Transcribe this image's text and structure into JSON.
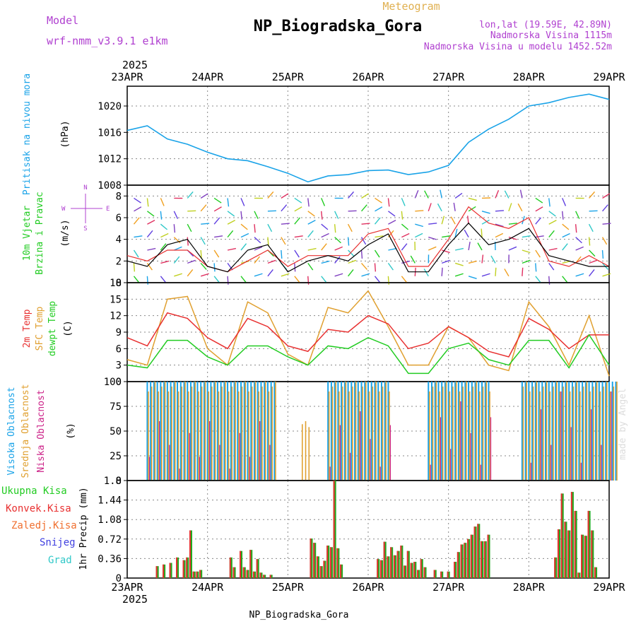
{
  "header": {
    "title": "NP_Biogradska_Gora",
    "subtitle": "Meteogram",
    "model_label": "Model",
    "model_name": "wrf-nmm_v3.9.1 e1km",
    "lonlat": "lon,lat (19.59E, 42.89N)",
    "elevation": "Nadmorska Visina 1115m",
    "model_elevation": "Nadmorska Visina u modelu 1452.52m",
    "footer": "NP_Biogradska_Gora",
    "credit": "made by Angel",
    "year": "2025"
  },
  "colors": {
    "pressure": "#1aa3e8",
    "wind_speed": "#000000",
    "gust": "#e83030",
    "temp2m": "#e83030",
    "sfc_temp": "#e0a030",
    "dewpoint": "#22cc22",
    "cloud_high": "#1aa3e8",
    "cloud_mid": "#e0a030",
    "cloud_low": "#cc2288",
    "precip_total": "#22aa22",
    "precip_conv": "#e83030",
    "title_purple": "#b040d0"
  },
  "chart_data": [
    {
      "type": "line",
      "ylabel_left": "Pritisak na nivou mora",
      "unit": "(hPa)",
      "yticks": [
        1008,
        1012,
        1016,
        1020
      ],
      "ylim": [
        1008,
        1023
      ],
      "grid": true,
      "x_labels": [
        "23APR",
        "24APR",
        "25APR",
        "26APR",
        "27APR",
        "28APR",
        "29APR"
      ],
      "x": [
        0,
        6,
        12,
        18,
        24,
        30,
        36,
        42,
        48,
        54,
        60,
        66,
        72,
        78,
        84,
        90,
        96,
        102,
        108,
        114,
        120,
        126,
        132,
        138,
        144
      ],
      "series": [
        {
          "values": [
            1016.3,
            1017.0,
            1015.0,
            1014.2,
            1013.0,
            1012.0,
            1011.7,
            1010.8,
            1009.8,
            1008.5,
            1009.4,
            1009.6,
            1010.2,
            1010.3,
            1009.6,
            1010.0,
            1011.0,
            1014.5,
            1016.5,
            1018.0,
            1020.0,
            1020.5,
            1021.3,
            1021.8,
            1021.0
          ]
        }
      ]
    },
    {
      "type": "line",
      "ylabel_left": [
        "10m Vjetar",
        "Brzina i Pravac"
      ],
      "unit": "(m/s)",
      "compass": [
        "N",
        "W",
        "E",
        "S"
      ],
      "yticks": [
        0,
        2,
        4,
        6,
        8
      ],
      "ylim": [
        0,
        9
      ],
      "grid": true,
      "x": [
        0,
        6,
        12,
        18,
        24,
        30,
        36,
        42,
        48,
        54,
        60,
        66,
        72,
        78,
        84,
        90,
        96,
        102,
        108,
        114,
        120,
        126,
        132,
        138,
        144
      ],
      "series": [
        {
          "values": [
            2.0,
            1.5,
            3.5,
            4.0,
            1.5,
            1.0,
            3.0,
            3.5,
            1.0,
            2.0,
            2.5,
            2.0,
            3.5,
            4.5,
            1.0,
            1.0,
            3.5,
            5.5,
            3.5,
            4.0,
            5.0,
            2.5,
            2.0,
            1.5,
            1.5
          ]
        },
        {
          "values": [
            2.5,
            2.0,
            3.0,
            3.0,
            1.5,
            1.0,
            2.0,
            3.0,
            1.5,
            2.5,
            2.5,
            2.5,
            4.5,
            5.0,
            1.5,
            1.5,
            4.0,
            7.0,
            5.5,
            5.0,
            6.0,
            2.0,
            1.5,
            2.5,
            1.5
          ]
        }
      ]
    },
    {
      "type": "line",
      "ylabel_left": [
        "2m Temp",
        "SFC Temp",
        "dewpt Temp"
      ],
      "unit": "(C)",
      "yticks": [
        0,
        3,
        6,
        9,
        12,
        15,
        18
      ],
      "ylim": [
        0,
        18
      ],
      "grid": true,
      "x": [
        0,
        6,
        12,
        18,
        24,
        30,
        36,
        42,
        48,
        54,
        60,
        66,
        72,
        78,
        84,
        90,
        96,
        102,
        108,
        114,
        120,
        126,
        132,
        138,
        144
      ],
      "series": [
        {
          "values": [
            8.0,
            6.5,
            12.5,
            11.5,
            8.0,
            6.0,
            11.5,
            10.0,
            6.5,
            5.5,
            9.5,
            9.0,
            12.0,
            10.5,
            6.0,
            7.0,
            10.0,
            8.0,
            5.5,
            4.5,
            11.5,
            9.5,
            6.0,
            8.5,
            8.5
          ]
        },
        {
          "values": [
            4.0,
            3.0,
            15.0,
            15.5,
            6.0,
            3.0,
            14.5,
            12.5,
            5.0,
            3.0,
            13.5,
            12.5,
            16.5,
            10.0,
            3.0,
            3.0,
            10.0,
            8.0,
            3.0,
            2.0,
            14.5,
            10.0,
            3.0,
            12.0,
            1.0
          ]
        },
        {
          "values": [
            3.0,
            2.5,
            7.5,
            7.5,
            4.5,
            3.0,
            6.5,
            6.5,
            4.5,
            3.0,
            6.5,
            6.0,
            8.0,
            6.5,
            1.5,
            1.5,
            6.0,
            7.0,
            4.0,
            3.0,
            7.5,
            7.5,
            2.5,
            8.5,
            3.0
          ]
        }
      ]
    },
    {
      "type": "bar",
      "ylabel_left": [
        "Visoka Oblacnost",
        "Srednja Oblacnost",
        "Niska Oblacnost"
      ],
      "unit": "(%)",
      "yticks": [
        0,
        25,
        50,
        75,
        100
      ],
      "ylim": [
        0,
        100
      ],
      "grid": true,
      "segments": [
        {
          "x": [
            6,
            44
          ],
          "high": 100,
          "mid": 100,
          "low": 60
        },
        {
          "x": [
            52,
            54
          ],
          "mid": 60
        },
        {
          "x": [
            60,
            78
          ],
          "high": 100,
          "mid": 100,
          "low": 70
        },
        {
          "x": [
            90,
            108
          ],
          "high": 100,
          "mid": 100,
          "low": 80
        },
        {
          "x": [
            118,
            146
          ],
          "high": 100,
          "mid": 100,
          "low": 90
        }
      ]
    },
    {
      "type": "bar",
      "ylabel_left": "1hr Precip",
      "unit": "(mm)",
      "legend": [
        "Ukupna Kisa",
        "Konvek.Kisa",
        "Zaledj.Kisa",
        "Snijeg",
        "Grad"
      ],
      "yticks": [
        0,
        0.36,
        0.72,
        1.08,
        1.44,
        1.8
      ],
      "ylim": [
        0,
        1.8
      ],
      "grid": true,
      "x": [
        9,
        11,
        13,
        15,
        17,
        18,
        19,
        20,
        21,
        22,
        31,
        32,
        34,
        35,
        36,
        37,
        38,
        39,
        40,
        41,
        43,
        55,
        56,
        57,
        58,
        59,
        60,
        61,
        62,
        63,
        64,
        75,
        76,
        77,
        78,
        79,
        80,
        81,
        82,
        83,
        84,
        85,
        86,
        87,
        88,
        89,
        92,
        94,
        96,
        98,
        99,
        100,
        101,
        102,
        103,
        104,
        105,
        106,
        107,
        108,
        128,
        129,
        130,
        131,
        132,
        133,
        134,
        135,
        136,
        137,
        138,
        139,
        140
      ],
      "values": [
        0.22,
        0.25,
        0.28,
        0.38,
        0.33,
        0.38,
        0.88,
        0.12,
        0.12,
        0.15,
        0.38,
        0.2,
        0.5,
        0.2,
        0.15,
        0.52,
        0.12,
        0.35,
        0.1,
        0.06,
        0.06,
        0.73,
        0.65,
        0.4,
        0.22,
        0.32,
        0.6,
        0.57,
        1.8,
        0.55,
        0.25,
        0.35,
        0.33,
        0.67,
        0.4,
        0.57,
        0.42,
        0.5,
        0.6,
        0.23,
        0.5,
        0.28,
        0.3,
        0.15,
        0.35,
        0.2,
        0.15,
        0.12,
        0.12,
        0.3,
        0.48,
        0.62,
        0.65,
        0.72,
        0.8,
        0.95,
        1.0,
        0.68,
        0.68,
        0.8,
        0.38,
        0.9,
        1.56,
        1.04,
        0.88,
        1.59,
        1.24,
        0.1,
        0.8,
        0.78,
        1.24,
        0.88,
        0.2
      ]
    }
  ],
  "x_axis": {
    "labels": [
      "23APR",
      "24APR",
      "25APR",
      "26APR",
      "27APR",
      "28APR",
      "29APR"
    ],
    "year": "2025"
  }
}
